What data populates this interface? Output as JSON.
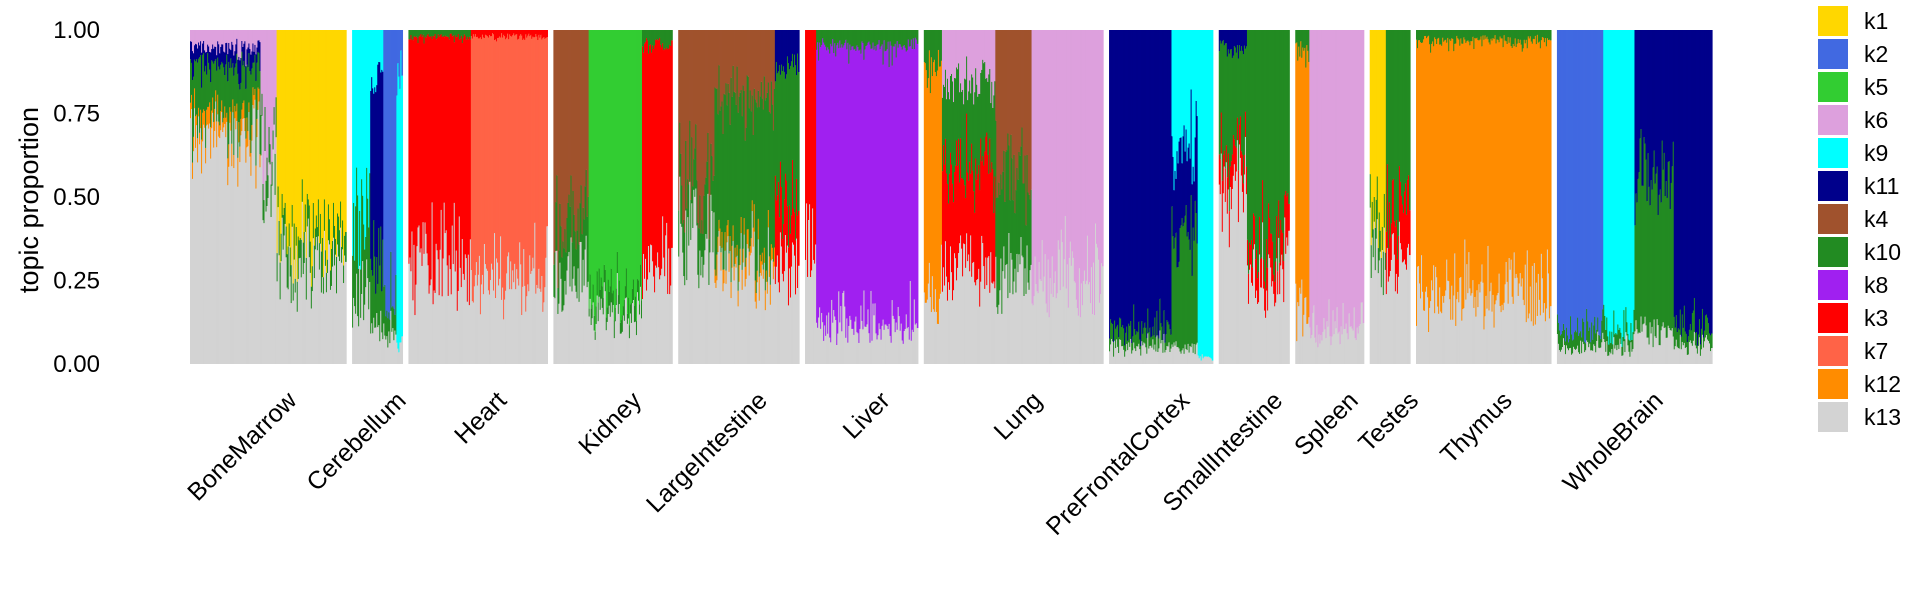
{
  "chart_data": {
    "type": "structure_plot",
    "title": "",
    "xlabel": "",
    "ylabel": "topic proportion",
    "ylim": [
      0,
      1
    ],
    "yticks": [
      0.0,
      0.25,
      0.5,
      0.75,
      1.0
    ],
    "ytick_labels": [
      "0.00",
      "0.25",
      "0.50",
      "0.75",
      "1.00"
    ],
    "legend_position": "right",
    "topics": [
      {
        "name": "k1",
        "color": "#FFD700"
      },
      {
        "name": "k2",
        "color": "#4169E1"
      },
      {
        "name": "k5",
        "color": "#32CD32"
      },
      {
        "name": "k6",
        "color": "#DDA0DD"
      },
      {
        "name": "k9",
        "color": "#00FFFF"
      },
      {
        "name": "k11",
        "color": "#00008B"
      },
      {
        "name": "k4",
        "color": "#A0522D"
      },
      {
        "name": "k10",
        "color": "#228B22"
      },
      {
        "name": "k8",
        "color": "#A020F0"
      },
      {
        "name": "k3",
        "color": "#FF0000"
      },
      {
        "name": "k7",
        "color": "#FF6347"
      },
      {
        "name": "k12",
        "color": "#FF8C00"
      },
      {
        "name": "k13",
        "color": "#D3D3D3"
      }
    ],
    "stack_order_bottom_to_top": [
      "k13",
      "k12",
      "k7",
      "k3",
      "k8",
      "k10",
      "k4",
      "k11",
      "k9",
      "k6",
      "k5",
      "k2",
      "k1"
    ],
    "groups": [
      {
        "name": "BoneMarrow",
        "n_cells": 155,
        "segments": [
          {
            "share": 0.45,
            "mix": {
              "k13": 0.7,
              "k10": 0.15,
              "k6": 0.05,
              "k12": 0.05,
              "k11": 0.05
            }
          },
          {
            "share": 0.1,
            "mix": {
              "k13": 0.55,
              "k6": 0.35,
              "k10": 0.1
            }
          },
          {
            "share": 0.45,
            "mix": {
              "k13": 0.3,
              "k1": 0.62,
              "k10": 0.08
            }
          }
        ]
      },
      {
        "name": "Cerebellum",
        "n_cells": 50,
        "segments": [
          {
            "share": 0.35,
            "mix": {
              "k13": 0.2,
              "k9": 0.55,
              "k10": 0.25
            }
          },
          {
            "share": 0.25,
            "mix": {
              "k13": 0.1,
              "k11": 0.55,
              "k9": 0.15,
              "k10": 0.2
            }
          },
          {
            "share": 0.25,
            "mix": {
              "k13": 0.1,
              "k2": 0.8,
              "k10": 0.1
            }
          },
          {
            "share": 0.15,
            "mix": {
              "k13": 0.05,
              "k9": 0.85,
              "k2": 0.1
            }
          }
        ]
      },
      {
        "name": "Heart",
        "n_cells": 138,
        "segments": [
          {
            "share": 0.45,
            "mix": {
              "k13": 0.3,
              "k3": 0.68,
              "k10": 0.02
            }
          },
          {
            "share": 0.55,
            "mix": {
              "k13": 0.25,
              "k7": 0.73,
              "k3": 0.02
            }
          }
        ]
      },
      {
        "name": "Kidney",
        "n_cells": 118,
        "segments": [
          {
            "share": 0.3,
            "mix": {
              "k13": 0.25,
              "k4": 0.6,
              "k10": 0.15
            }
          },
          {
            "share": 0.45,
            "mix": {
              "k13": 0.15,
              "k5": 0.8,
              "k10": 0.05
            }
          },
          {
            "share": 0.25,
            "mix": {
              "k13": 0.3,
              "k3": 0.65,
              "k10": 0.05
            }
          }
        ]
      },
      {
        "name": "LargeIntestine",
        "n_cells": 120,
        "segments": [
          {
            "share": 0.3,
            "mix": {
              "k13": 0.4,
              "k4": 0.45,
              "k10": 0.15
            }
          },
          {
            "share": 0.5,
            "mix": {
              "k13": 0.3,
              "k10": 0.45,
              "k4": 0.2,
              "k12": 0.05
            }
          },
          {
            "share": 0.2,
            "mix": {
              "k13": 0.3,
              "k10": 0.4,
              "k3": 0.2,
              "k11": 0.1
            }
          }
        ]
      },
      {
        "name": "Liver",
        "n_cells": 112,
        "segments": [
          {
            "share": 0.1,
            "mix": {
              "k13": 0.3,
              "k3": 0.7
            }
          },
          {
            "share": 0.9,
            "mix": {
              "k13": 0.12,
              "k8": 0.83,
              "k10": 0.05
            }
          }
        ]
      },
      {
        "name": "Lung",
        "n_cells": 178,
        "segments": [
          {
            "share": 0.1,
            "mix": {
              "k13": 0.2,
              "k12": 0.7,
              "k10": 0.1
            }
          },
          {
            "share": 0.3,
            "mix": {
              "k13": 0.3,
              "k3": 0.3,
              "k10": 0.25,
              "k6": 0.15
            }
          },
          {
            "share": 0.2,
            "mix": {
              "k13": 0.25,
              "k4": 0.45,
              "k10": 0.3
            }
          },
          {
            "share": 0.4,
            "mix": {
              "k13": 0.25,
              "k6": 0.75
            }
          }
        ]
      },
      {
        "name": "PreFrontalCortex",
        "n_cells": 103,
        "segments": [
          {
            "share": 0.6,
            "mix": {
              "k13": 0.05,
              "k11": 0.9,
              "k10": 0.05
            }
          },
          {
            "share": 0.25,
            "mix": {
              "k13": 0.05,
              "k10": 0.35,
              "k11": 0.25,
              "k9": 0.35
            }
          },
          {
            "share": 0.15,
            "mix": {
              "k13": 0.02,
              "k9": 0.98
            }
          }
        ]
      },
      {
        "name": "SmallIntestine",
        "n_cells": 70,
        "segments": [
          {
            "share": 0.4,
            "mix": {
              "k13": 0.55,
              "k10": 0.3,
              "k3": 0.1,
              "k11": 0.05
            }
          },
          {
            "share": 0.6,
            "mix": {
              "k13": 0.25,
              "k10": 0.65,
              "k3": 0.1
            }
          }
        ]
      },
      {
        "name": "Spleen",
        "n_cells": 68,
        "segments": [
          {
            "share": 0.2,
            "mix": {
              "k13": 0.15,
              "k12": 0.8,
              "k10": 0.05
            }
          },
          {
            "share": 0.8,
            "mix": {
              "k13": 0.1,
              "k6": 0.9
            }
          }
        ]
      },
      {
        "name": "Testes",
        "n_cells": 40,
        "segments": [
          {
            "share": 0.4,
            "mix": {
              "k13": 0.3,
              "k1": 0.6,
              "k10": 0.1
            }
          },
          {
            "share": 0.6,
            "mix": {
              "k13": 0.3,
              "k10": 0.55,
              "k3": 0.15
            }
          }
        ]
      },
      {
        "name": "Thymus",
        "n_cells": 134,
        "segments": [
          {
            "share": 1.0,
            "mix": {
              "k13": 0.2,
              "k12": 0.77,
              "k10": 0.03
            }
          }
        ]
      },
      {
        "name": "WholeBrain",
        "n_cells": 154,
        "segments": [
          {
            "share": 0.3,
            "mix": {
              "k13": 0.05,
              "k2": 0.9,
              "k10": 0.05
            }
          },
          {
            "share": 0.2,
            "mix": {
              "k13": 0.05,
              "k9": 0.9,
              "k10": 0.05
            }
          },
          {
            "share": 0.25,
            "mix": {
              "k13": 0.1,
              "k10": 0.45,
              "k11": 0.45
            }
          },
          {
            "share": 0.25,
            "mix": {
              "k13": 0.05,
              "k11": 0.9,
              "k10": 0.05
            }
          }
        ]
      }
    ]
  }
}
